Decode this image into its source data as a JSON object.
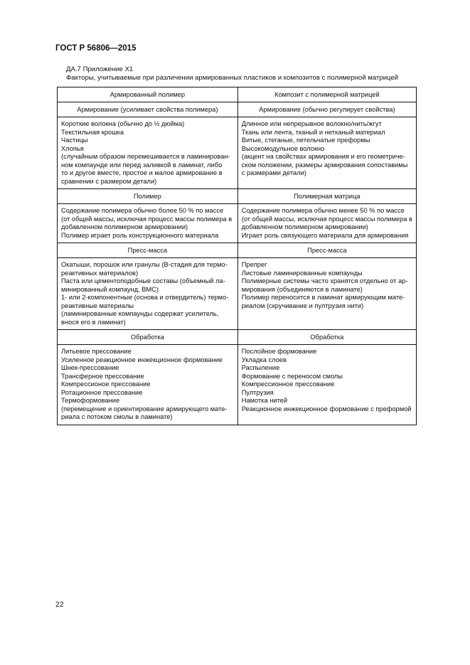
{
  "header": "ГОСТ Р 56806—2015",
  "caption": {
    "line1": "ДА.7  Приложение Х1",
    "line2": "Факторы, учитываемые при различении армированных пластиков и композитов с полимерной матрицей"
  },
  "table": {
    "columns": [
      "Армированный полимер",
      "Композит с полимерной матрицей"
    ],
    "sections": [
      {
        "left_title": "Армирование (усиливает свойства полимера)",
        "right_title": "Армирование (обычно регулирует свойства)",
        "left": [
          "Короткие волокна (обычно до ½ дюйма)",
          "Текстильная крошка",
          "Частицы",
          "Хлопья",
          "(случайным образом перемешивается в ламинирован-",
          "ном компаунде или перед заливкой в ламинат, либо",
          "то и другое вместе, простое и малое армирование в",
          "сравнении с размером детали)"
        ],
        "right": [
          "Длинное или непрерывное волокно/нить/жгут",
          "Ткань или лента, тканый и нетканый материал",
          "Витые, стеганые, петельчатые преформы",
          "Высокомодульное волокно",
          "(акцент на свойствах армирования и его геометриче-",
          "ском положении, размеры армирования сопоставимы",
          "с размерами детали)"
        ]
      },
      {
        "left_title": "Полимер",
        "right_title": "Полимерная матрица",
        "left": [
          "Содержание полимера обычно более 50 % по массе",
          "(от общей массы, исключая процесс массы полимера в",
          "добавленном полимерном армировании)",
          "Полимер играет роль конструкционного материала"
        ],
        "right": [
          "Содержание полимера обычно менее 50 % по массе",
          "(от общей массы, исключая процесс массы полимера в",
          "добавленном полимерном армировании)",
          "Играет роль связующего материала для армирования"
        ]
      },
      {
        "left_title": "Пресс-масса",
        "right_title": "Пресс-масса",
        "left": [
          "Окатыши, порошок или гранулы (В-стадия для термо-",
          "реактивных материалов)",
          "Паста или цементоподобные составы (объемный ла-",
          "минированный компаунд, ВМС)",
          "1- или 2-компонентные (основа и отвердитель) термо-",
          "реактивные материалы",
          "(ламинированные компаунды содержат усилитель,",
          "внося его в ламинат)"
        ],
        "right": [
          "Препрег",
          "Листовые ламинированные компаунды",
          "Полимерные системы часто хранятся отдельно от ар-",
          "мирования (объединяются в ламинате)",
          "Полимер переносится в ламинат армирующим мате-",
          "риалом (скручивание и пултрузия нити)"
        ]
      },
      {
        "left_title": "Обработка",
        "right_title": "Обработка",
        "left": [
          "Литьевое прессование",
          "Усиленное реакционное инжекционное формование",
          "Шнек-прессование",
          "Трансферное прессование",
          "Компрессионое прессование",
          "Ротационное прессование",
          "Термоформование",
          "(перемещение и ориентирование армирующего мате-",
          "риала с потоком смолы в ламинате)"
        ],
        "right": [
          "Послойное формование",
          "Укладка слоев",
          "Распыление",
          "Формование с переносом смолы",
          "Компрессионное прессование",
          "Пултрузия",
          "Намотка нитей",
          "Реакционное инжекционное формование с преформой"
        ]
      }
    ]
  },
  "page_number": "22"
}
